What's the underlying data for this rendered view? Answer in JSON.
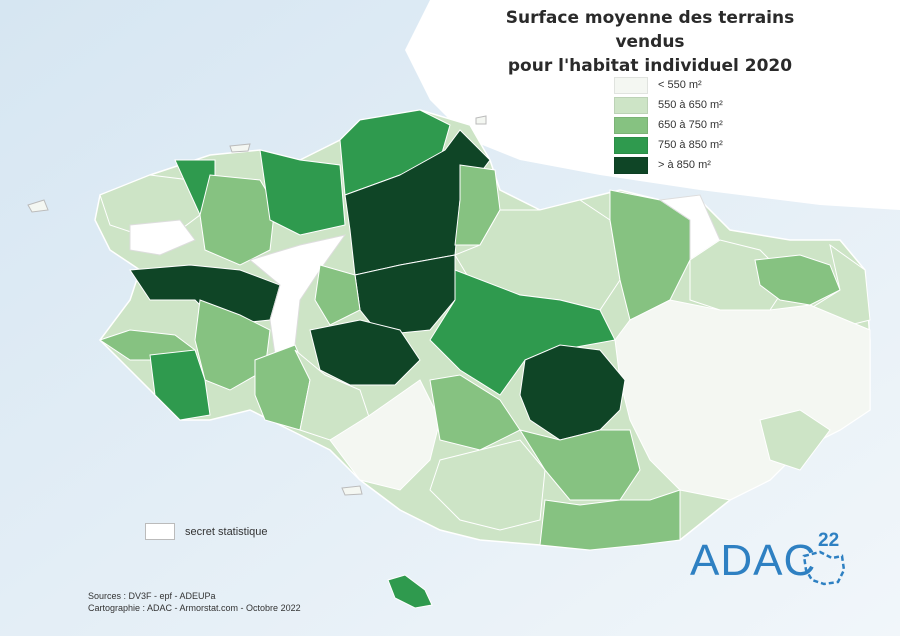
{
  "title_line1": "Surface moyenne des terrains vendus",
  "title_line2": "pour l'habitat individuel 2020",
  "legend": [
    {
      "label": "< 550 m²",
      "color": "#f4f7f2"
    },
    {
      "label": "550 à 650 m²",
      "color": "#cde4c6"
    },
    {
      "label": "650 à 750 m²",
      "color": "#86c281"
    },
    {
      "label": "750 à 850 m²",
      "color": "#2f9a4e"
    },
    {
      "label": "> à 850 m²",
      "color": "#0f4526"
    }
  ],
  "secret_label": "secret statistique",
  "secret_color": "#ffffff",
  "sources_line1": "Sources : DV3F - epf - ADEUPa",
  "sources_line2": "Cartographie : ADAC - Armorstat.com - Octobre 2022",
  "logo_text": "ADAC",
  "logo_superscript": "22",
  "logo_color": "#2e80c2"
}
